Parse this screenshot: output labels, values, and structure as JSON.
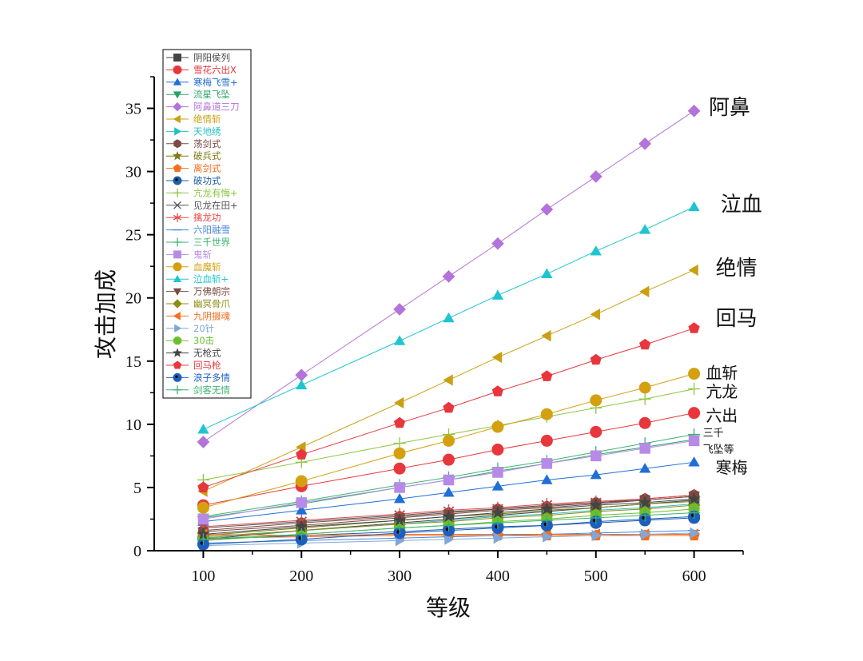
{
  "chart_data": {
    "type": "line",
    "title": "",
    "xlabel": "等级",
    "ylabel": "攻击加成",
    "xlim": [
      50,
      650
    ],
    "ylim": [
      0,
      37.5
    ],
    "xticks": [
      100,
      200,
      300,
      400,
      500,
      600
    ],
    "yticks": [
      0,
      5,
      10,
      15,
      20,
      25,
      30,
      35
    ],
    "grid": false,
    "legend_position": "top-left",
    "x": [
      100,
      200,
      300,
      350,
      400,
      450,
      500,
      550,
      600
    ],
    "series": [
      {
        "name": "阴阳侯列",
        "color": "#444444",
        "marker": "square",
        "values": [
          0.9,
          1.6,
          2.2,
          2.5,
          2.8,
          3.1,
          3.4,
          3.7,
          4.0
        ]
      },
      {
        "name": "雪花六出X",
        "color": "#e8373c",
        "marker": "circle",
        "values": [
          3.6,
          5.1,
          6.5,
          7.2,
          8.0,
          8.7,
          9.4,
          10.1,
          10.9
        ]
      },
      {
        "name": "寒梅飞雪+",
        "color": "#1f6fd6",
        "marker": "triangle-up",
        "values": [
          2.3,
          3.2,
          4.1,
          4.6,
          5.1,
          5.6,
          6.0,
          6.5,
          7.0
        ]
      },
      {
        "name": "流星飞坠",
        "color": "#2aa36a",
        "marker": "triangle-down",
        "values": [
          2.6,
          3.7,
          5.0,
          5.6,
          6.3,
          6.9,
          7.6,
          8.2,
          8.8
        ]
      },
      {
        "name": "阿鼻道三刀",
        "color": "#b373d9",
        "marker": "diamond",
        "values": [
          8.6,
          13.9,
          19.1,
          21.7,
          24.3,
          27.0,
          29.6,
          32.2,
          34.8
        ]
      },
      {
        "name": "绝情斩",
        "color": "#c9a012",
        "marker": "triangle-left",
        "values": [
          4.7,
          8.2,
          11.7,
          13.5,
          15.3,
          17.0,
          18.7,
          20.5,
          22.2
        ]
      },
      {
        "name": "天地绣",
        "color": "#20c0c8",
        "marker": "triangle-right",
        "values": [
          1.0,
          1.6,
          2.1,
          2.4,
          2.7,
          2.9,
          3.2,
          3.4,
          3.7
        ]
      },
      {
        "name": "荡剑式",
        "color": "#7a4a43",
        "marker": "hexagon",
        "values": [
          1.6,
          2.2,
          2.7,
          3.0,
          3.3,
          3.5,
          3.8,
          4.1,
          4.4
        ]
      },
      {
        "name": "破兵式",
        "color": "#7b7b13",
        "marker": "star",
        "values": [
          1.2,
          1.8,
          2.4,
          2.7,
          2.9,
          3.2,
          3.4,
          3.7,
          3.9
        ]
      },
      {
        "name": "离剑式",
        "color": "#f36f21",
        "marker": "pentagon",
        "values": [
          1.0,
          1.1,
          1.2,
          1.2,
          1.2,
          1.2,
          1.2,
          1.2,
          1.2
        ]
      },
      {
        "name": "破功式",
        "color": "#1d5fa8",
        "marker": "circle-dot",
        "values": [
          0.9,
          1.2,
          1.5,
          1.7,
          1.9,
          2.0,
          2.2,
          2.4,
          2.6
        ]
      },
      {
        "name": "亢龙有悔+",
        "color": "#8dc63f",
        "marker": "plus",
        "values": [
          5.6,
          7.0,
          8.5,
          9.2,
          9.9,
          10.6,
          11.3,
          12.0,
          12.8
        ]
      },
      {
        "name": "见龙在田+",
        "color": "#555555",
        "marker": "x",
        "values": [
          1.8,
          2.3,
          2.8,
          3.1,
          3.3,
          3.6,
          3.8,
          4.0,
          4.3
        ]
      },
      {
        "name": "擒龙功",
        "color": "#e84545",
        "marker": "asterisk",
        "values": [
          1.9,
          2.4,
          2.9,
          3.2,
          3.4,
          3.7,
          3.9,
          4.1,
          4.4
        ]
      },
      {
        "name": "六阳融雪",
        "color": "#4a86d9",
        "marker": "dash",
        "values": [
          0.6,
          0.8,
          1.0,
          1.1,
          1.2,
          1.3,
          1.4,
          1.5,
          1.6
        ]
      },
      {
        "name": "三千世界",
        "color": "#3cb371",
        "marker": "plus",
        "values": [
          2.7,
          3.9,
          5.2,
          5.8,
          6.5,
          7.1,
          7.8,
          8.5,
          9.2
        ]
      },
      {
        "name": "鬼斩",
        "color": "#b78ae8",
        "marker": "square",
        "values": [
          2.5,
          3.8,
          5.0,
          5.6,
          6.2,
          6.9,
          7.5,
          8.1,
          8.7
        ]
      },
      {
        "name": "血魔斩",
        "color": "#d4a010",
        "marker": "circle",
        "values": [
          3.4,
          5.5,
          7.7,
          8.7,
          9.8,
          10.8,
          11.9,
          12.9,
          14.0
        ]
      },
      {
        "name": "泣血斩+",
        "color": "#1ec5d0",
        "marker": "triangle-up",
        "values": [
          9.6,
          13.1,
          16.6,
          18.4,
          20.2,
          21.9,
          23.7,
          25.4,
          27.2
        ]
      },
      {
        "name": "万佛朝宗",
        "color": "#7a4a43",
        "marker": "triangle-down",
        "values": [
          1.5,
          2.0,
          2.6,
          2.9,
          3.2,
          3.4,
          3.7,
          4.0,
          4.3
        ]
      },
      {
        "name": "幽冥骨爪",
        "color": "#8f8c13",
        "marker": "diamond",
        "values": [
          1.1,
          1.6,
          2.1,
          2.3,
          2.6,
          2.8,
          3.1,
          3.3,
          3.6
        ]
      },
      {
        "name": "九阴摄魂",
        "color": "#f36f21",
        "marker": "triangle-left",
        "values": [
          1.3,
          1.2,
          1.3,
          1.3,
          1.3,
          1.3,
          1.3,
          1.3,
          1.3
        ]
      },
      {
        "name": "20针",
        "color": "#7fa8d8",
        "marker": "triangle-right",
        "values": [
          0.4,
          0.6,
          0.8,
          0.9,
          1.0,
          1.1,
          1.2,
          1.3,
          1.4
        ]
      },
      {
        "name": "30击",
        "color": "#6cbf2a",
        "marker": "octagon",
        "values": [
          0.8,
          1.3,
          1.8,
          2.0,
          2.3,
          2.5,
          2.8,
          3.0,
          3.3
        ]
      },
      {
        "name": "无枪式",
        "color": "#444444",
        "marker": "star",
        "values": [
          1.3,
          1.9,
          2.4,
          2.7,
          3.0,
          3.3,
          3.6,
          3.8,
          4.1
        ]
      },
      {
        "name": "回马枪",
        "color": "#e8373c",
        "marker": "pentagon",
        "values": [
          5.0,
          7.6,
          10.1,
          11.3,
          12.6,
          13.8,
          15.1,
          16.3,
          17.6
        ]
      },
      {
        "name": "浪子多情",
        "color": "#1d5fc0",
        "marker": "circle-dot",
        "values": [
          0.5,
          0.9,
          1.4,
          1.6,
          1.8,
          2.0,
          2.3,
          2.5,
          2.7
        ]
      },
      {
        "name": "剑客无情",
        "color": "#3cb371",
        "marker": "plus",
        "values": [
          0.9,
          1.3,
          1.8,
          2.0,
          2.2,
          2.4,
          2.6,
          2.8,
          3.0
        ]
      }
    ],
    "annotations": [
      {
        "text": "阿鼻",
        "x": 615,
        "y": 35.1,
        "size": "big"
      },
      {
        "text": "泣血",
        "x": 627,
        "y": 27.4,
        "size": "big"
      },
      {
        "text": "绝情",
        "x": 622,
        "y": 22.4,
        "size": "big"
      },
      {
        "text": "回马",
        "x": 622,
        "y": 18.4,
        "size": "big"
      },
      {
        "text": "血斩",
        "x": 612,
        "y": 14.2,
        "size": "mid"
      },
      {
        "text": "亢龙",
        "x": 612,
        "y": 12.7,
        "size": "mid"
      },
      {
        "text": "六出",
        "x": 612,
        "y": 10.8,
        "size": "mid"
      },
      {
        "text": "三千",
        "x": 609,
        "y": 9.6,
        "size": "small"
      },
      {
        "text": "飞坠等",
        "x": 609,
        "y": 8.3,
        "size": "small"
      },
      {
        "text": "寒梅",
        "x": 622,
        "y": 6.7,
        "size": "mid"
      }
    ]
  }
}
